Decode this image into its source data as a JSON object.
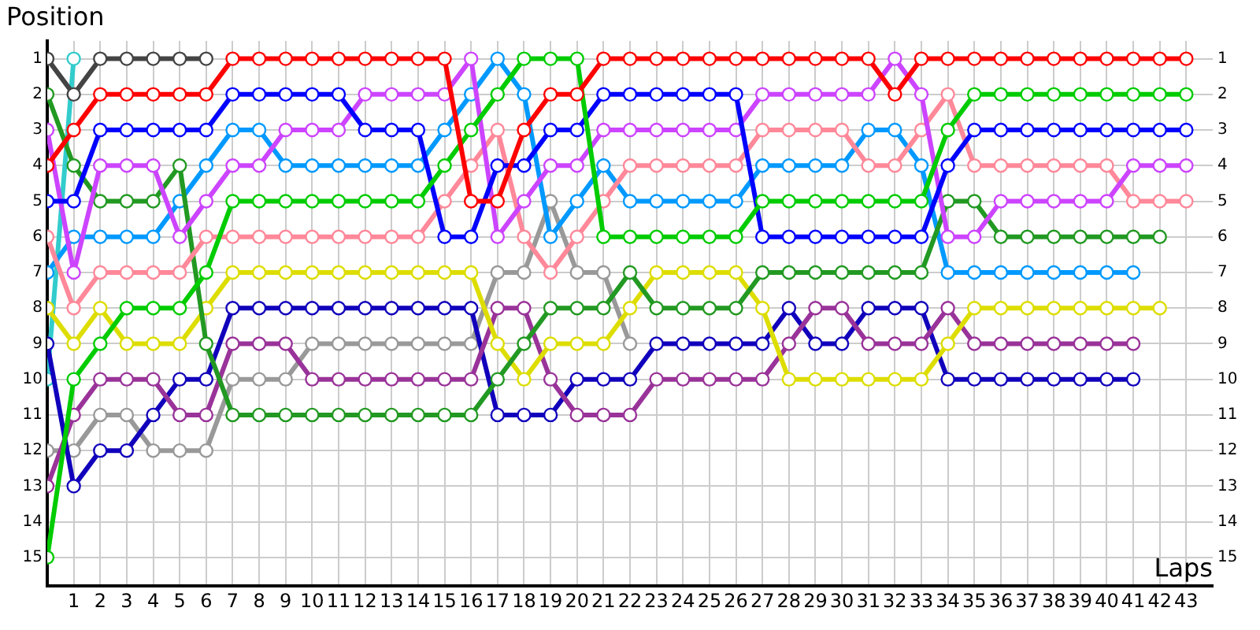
{
  "chart_data": {
    "type": "line",
    "xlabel": "Laps",
    "ylabel": "Position",
    "marker": "circle",
    "line_style": "solid",
    "grid": true,
    "legend": false,
    "x": [
      0,
      1,
      2,
      3,
      4,
      5,
      6,
      7,
      8,
      9,
      10,
      11,
      12,
      13,
      14,
      15,
      16,
      17,
      18,
      19,
      20,
      21,
      22,
      23,
      24,
      25,
      26,
      27,
      28,
      29,
      30,
      31,
      32,
      33,
      34,
      35,
      36,
      37,
      38,
      39,
      40,
      41,
      42,
      43
    ],
    "xlim": [
      0,
      44
    ],
    "xticks": [
      1,
      2,
      3,
      4,
      5,
      6,
      7,
      8,
      9,
      10,
      11,
      12,
      13,
      14,
      15,
      16,
      17,
      18,
      19,
      20,
      21,
      22,
      23,
      24,
      25,
      26,
      27,
      28,
      29,
      30,
      31,
      32,
      33,
      34,
      35,
      36,
      37,
      38,
      39,
      40,
      41,
      42,
      43
    ],
    "ylim": [
      15.8,
      0.5
    ],
    "yticks": [
      1,
      2,
      3,
      4,
      5,
      6,
      7,
      8,
      9,
      10,
      11,
      12,
      13,
      14,
      15
    ],
    "y2lim": [
      15.8,
      0.5
    ],
    "y2ticks": [
      1,
      2,
      3,
      4,
      5,
      6,
      7,
      8,
      9,
      10,
      11,
      12,
      13,
      14,
      15
    ],
    "series": [
      {
        "color": "#ff0000",
        "values": [
          4,
          3,
          2,
          2,
          2,
          2,
          2,
          1,
          1,
          1,
          1,
          1,
          1,
          1,
          1,
          1,
          5,
          5,
          3,
          2,
          2,
          1,
          1,
          1,
          1,
          1,
          1,
          1,
          1,
          1,
          1,
          1,
          2,
          1,
          1,
          1,
          1,
          1,
          1,
          1,
          1,
          1,
          1,
          1
        ]
      },
      {
        "color": "#00cc00",
        "values": [
          15,
          10,
          9,
          8,
          8,
          8,
          7,
          5,
          5,
          5,
          5,
          5,
          5,
          5,
          5,
          4,
          3,
          2,
          1,
          1,
          1,
          6,
          6,
          6,
          6,
          6,
          6,
          5,
          5,
          5,
          5,
          5,
          5,
          5,
          3,
          2,
          2,
          2,
          2,
          2,
          2,
          2,
          2,
          2
        ]
      },
      {
        "color": "#0000ff",
        "values": [
          5,
          5,
          3,
          3,
          3,
          3,
          3,
          2,
          2,
          2,
          2,
          2,
          3,
          3,
          3,
          6,
          6,
          4,
          4,
          3,
          3,
          2,
          2,
          2,
          2,
          2,
          2,
          6,
          6,
          6,
          6,
          6,
          6,
          6,
          4,
          3,
          3,
          3,
          3,
          3,
          3,
          3,
          3,
          3
        ]
      },
      {
        "color": "#cc44ff",
        "values": [
          3,
          7,
          4,
          4,
          4,
          6,
          5,
          4,
          4,
          3,
          3,
          3,
          2,
          2,
          2,
          2,
          1,
          6,
          5,
          4,
          4,
          3,
          3,
          3,
          3,
          3,
          3,
          2,
          2,
          2,
          2,
          2,
          1,
          2,
          6,
          6,
          5,
          5,
          5,
          5,
          5,
          4,
          4,
          4
        ]
      },
      {
        "color": "#ff8899",
        "values": [
          6,
          8,
          7,
          7,
          7,
          7,
          6,
          6,
          6,
          6,
          6,
          6,
          6,
          6,
          6,
          5,
          4,
          3,
          6,
          7,
          6,
          5,
          4,
          4,
          4,
          4,
          4,
          3,
          3,
          3,
          3,
          4,
          4,
          3,
          2,
          4,
          4,
          4,
          4,
          4,
          4,
          5,
          5,
          5
        ]
      },
      {
        "color": "#229922",
        "values": [
          2,
          4,
          5,
          5,
          5,
          4,
          9,
          11,
          11,
          11,
          11,
          11,
          11,
          11,
          11,
          11,
          11,
          10,
          9,
          8,
          8,
          8,
          7,
          8,
          8,
          8,
          8,
          7,
          7,
          7,
          7,
          7,
          7,
          7,
          5,
          5,
          6,
          6,
          6,
          6,
          6,
          6,
          6,
          null
        ]
      },
      {
        "color": "#0099ff",
        "values": [
          7,
          6,
          6,
          6,
          6,
          5,
          4,
          3,
          3,
          4,
          4,
          4,
          4,
          4,
          4,
          3,
          2,
          1,
          2,
          6,
          5,
          4,
          5,
          5,
          5,
          5,
          5,
          4,
          4,
          4,
          4,
          3,
          3,
          4,
          7,
          7,
          7,
          7,
          7,
          7,
          7,
          7,
          null,
          null
        ]
      },
      {
        "color": "#dddd00",
        "values": [
          8,
          9,
          8,
          9,
          9,
          9,
          8,
          7,
          7,
          7,
          7,
          7,
          7,
          7,
          7,
          7,
          7,
          9,
          10,
          9,
          9,
          9,
          8,
          7,
          7,
          7,
          7,
          8,
          10,
          10,
          10,
          10,
          10,
          10,
          9,
          8,
          8,
          8,
          8,
          8,
          8,
          8,
          8,
          null
        ]
      },
      {
        "color": "#993399",
        "values": [
          13,
          11,
          10,
          10,
          10,
          11,
          11,
          9,
          9,
          9,
          10,
          10,
          10,
          10,
          10,
          10,
          10,
          8,
          8,
          10,
          11,
          11,
          11,
          10,
          10,
          10,
          10,
          10,
          9,
          8,
          8,
          9,
          9,
          9,
          8,
          9,
          9,
          9,
          9,
          9,
          9,
          9,
          null,
          null
        ]
      },
      {
        "color": "#1100bb",
        "values": [
          9,
          13,
          12,
          12,
          11,
          10,
          10,
          8,
          8,
          8,
          8,
          8,
          8,
          8,
          8,
          8,
          8,
          11,
          11,
          11,
          10,
          10,
          10,
          9,
          9,
          9,
          9,
          9,
          8,
          9,
          9,
          8,
          8,
          8,
          10,
          10,
          10,
          10,
          10,
          10,
          10,
          10,
          null,
          null
        ]
      },
      {
        "color": "#999999",
        "values": [
          12,
          12,
          11,
          11,
          12,
          12,
          12,
          10,
          10,
          10,
          9,
          9,
          9,
          9,
          9,
          9,
          9,
          7,
          7,
          5,
          7,
          7,
          9,
          null,
          null,
          null,
          null,
          null,
          null,
          null,
          null,
          null,
          null,
          null,
          null,
          null,
          null,
          null,
          null,
          null,
          null,
          null,
          null,
          null
        ]
      },
      {
        "color": "#444444",
        "values": [
          1,
          2,
          1,
          1,
          1,
          1,
          1,
          null,
          null,
          null,
          null,
          null,
          null,
          null,
          null,
          null,
          null,
          null,
          null,
          null,
          null,
          null,
          null,
          null,
          null,
          null,
          null,
          null,
          null,
          null,
          null,
          null,
          null,
          null,
          null,
          null,
          null,
          null,
          null,
          null,
          null,
          null,
          null,
          null
        ]
      },
      {
        "color": "#33cccc",
        "values": [
          10,
          1,
          null,
          null,
          null,
          null,
          null,
          null,
          null,
          null,
          null,
          null,
          null,
          null,
          null,
          null,
          null,
          null,
          null,
          null,
          null,
          null,
          null,
          null,
          null,
          null,
          null,
          null,
          null,
          null,
          null,
          null,
          null,
          null,
          null,
          null,
          null,
          null,
          null,
          null,
          null,
          null,
          null,
          null
        ]
      }
    ]
  }
}
